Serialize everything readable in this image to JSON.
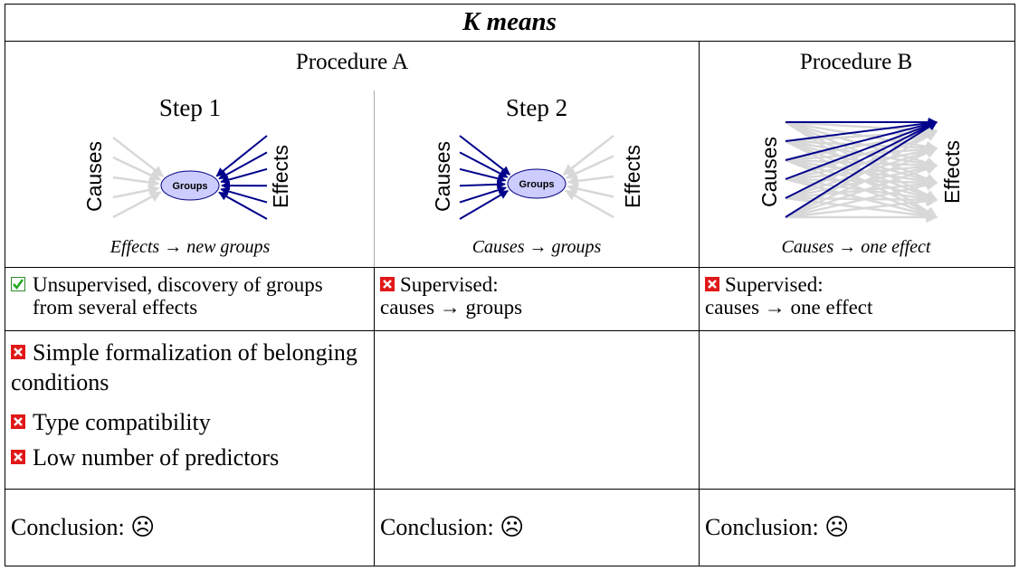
{
  "title": "K means",
  "procedures": [
    "Procedure A",
    "Procedure B"
  ],
  "steps": [
    {
      "title": "Step 1",
      "causes": "Causes",
      "effects": "Effects",
      "node": "Groups",
      "caption": "Effects → new groups"
    },
    {
      "title": "Step 2",
      "causes": "Causes",
      "effects": "Effects",
      "node": "Groups",
      "caption": "Causes → groups"
    },
    {
      "causes": "Causes",
      "effects": "Effects",
      "caption": "Causes → one effect"
    }
  ],
  "assessment": [
    "Unsupervised, discovery of groups from several effects",
    "Supervised:\ncauses → groups",
    "Supervised:\ncauses → one effect"
  ],
  "limitations": [
    "Simple formalization of belonging conditions",
    "Type compatibility",
    "Low number of predictors"
  ],
  "conclusions": [
    "Conclusion: ☹",
    "Conclusion: ☹",
    "Conclusion: ☹"
  ]
}
